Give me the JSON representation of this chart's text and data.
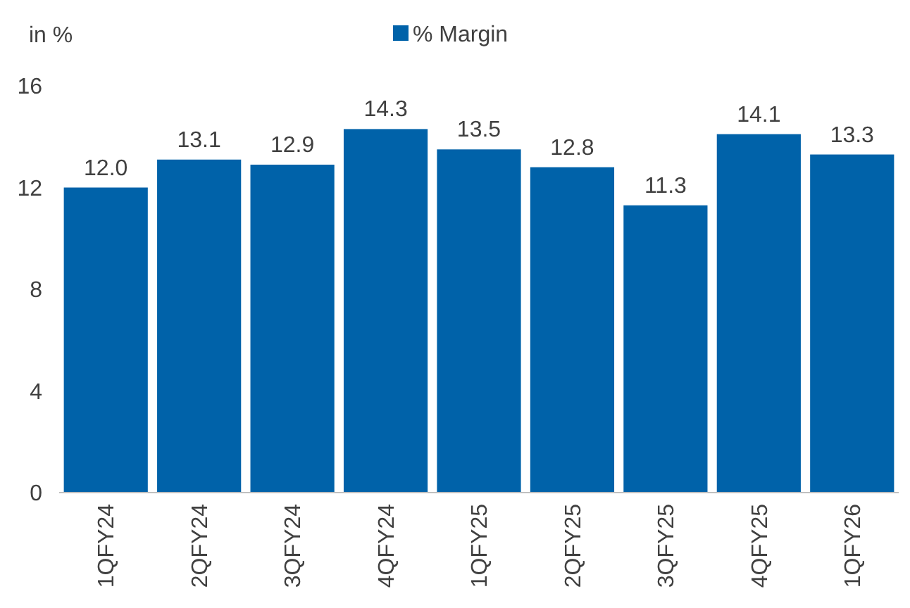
{
  "chart_data": {
    "type": "bar",
    "ylabel": "in %",
    "categories": [
      "1QFY24",
      "2QFY24",
      "3QFY24",
      "4QFY24",
      "1QFY25",
      "2QFY25",
      "3QFY25",
      "4QFY25",
      "1QFY26"
    ],
    "series": [
      {
        "name": "% Margin",
        "color": "#0062a9",
        "values": [
          12.0,
          13.1,
          12.9,
          14.3,
          13.5,
          12.8,
          11.3,
          14.1,
          13.3
        ],
        "value_labels": [
          "12.0",
          "13.1",
          "12.9",
          "14.3",
          "13.5",
          "12.8",
          "11.3",
          "14.1",
          "13.3"
        ]
      }
    ],
    "ylim": [
      0,
      16
    ],
    "yticks": [
      0,
      4,
      8,
      12,
      16
    ],
    "legend": "top",
    "grid": false
  }
}
